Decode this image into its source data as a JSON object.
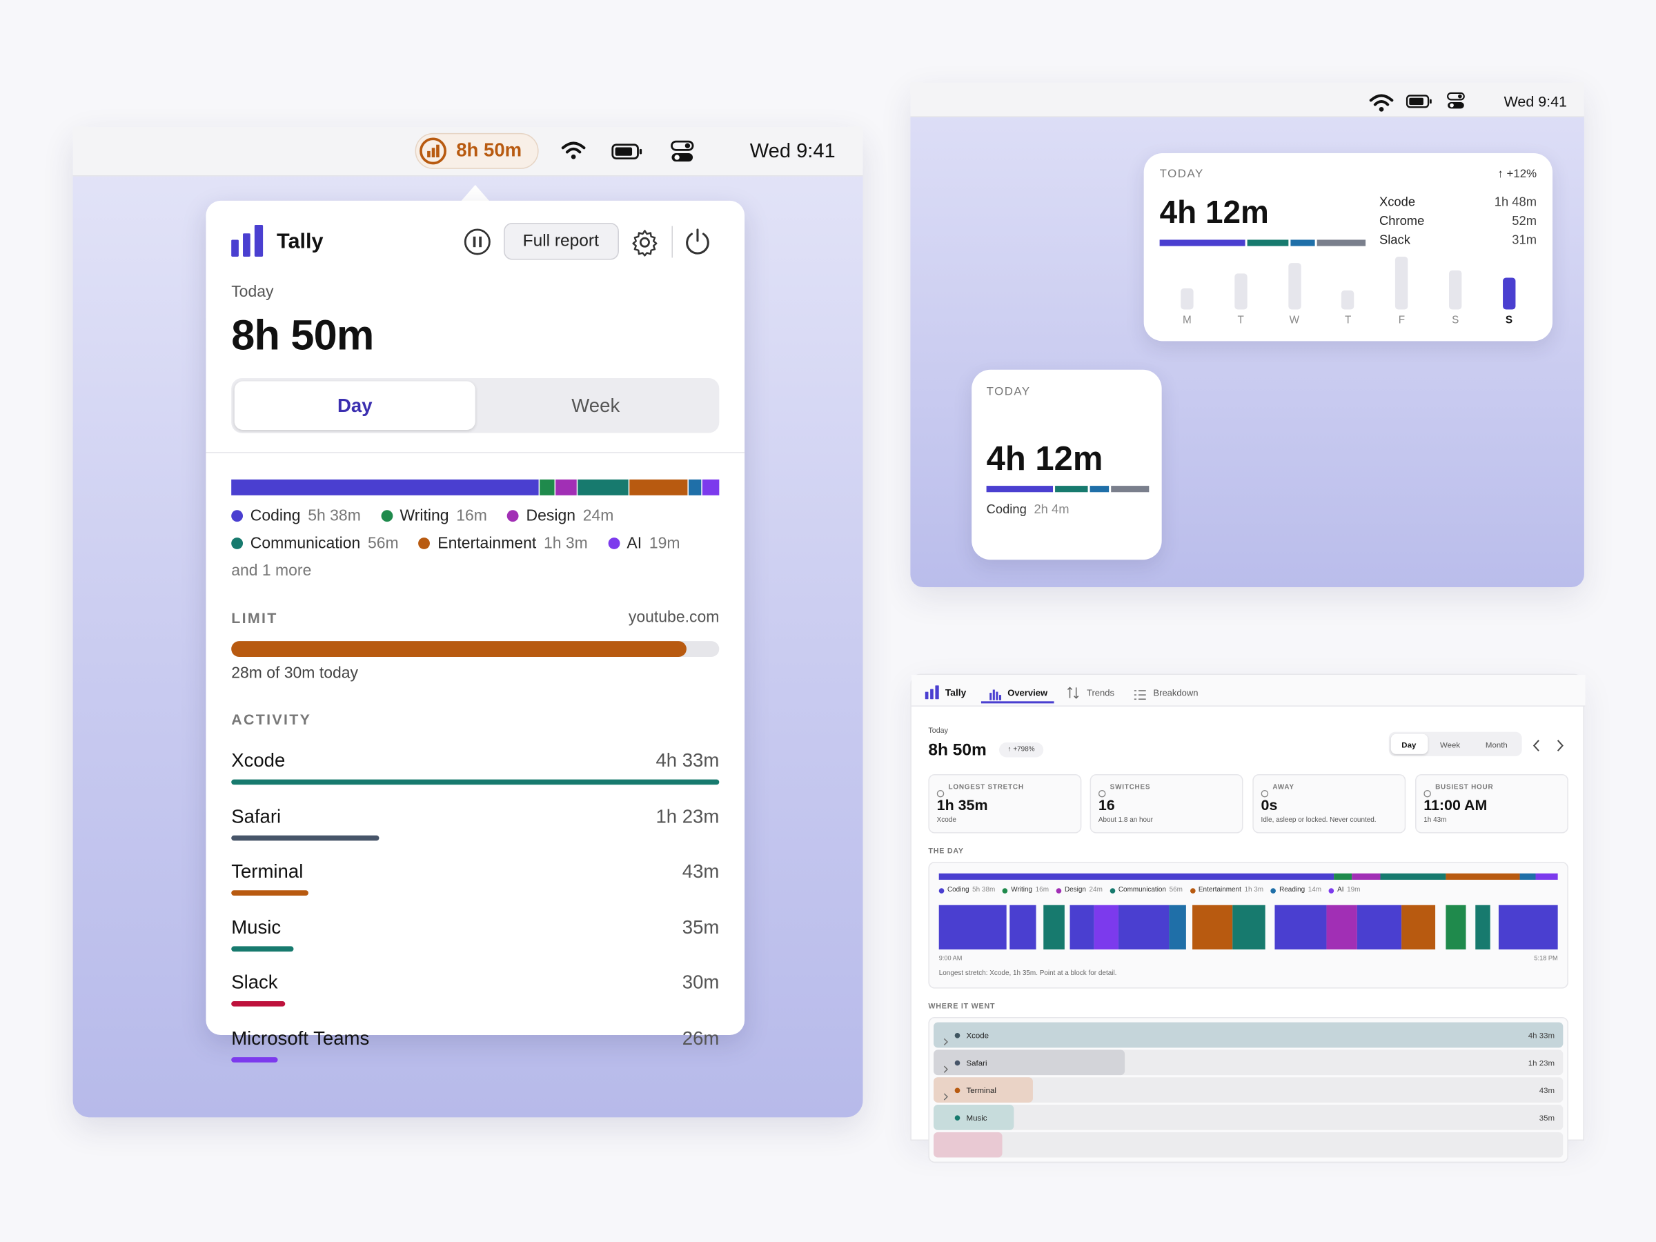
{
  "menu_popup": {
    "menubar": {
      "timer": "8h 50m",
      "clock": "Wed 9:41"
    },
    "app_name": "Tally",
    "full_report": "Full report",
    "today_label": "Today",
    "total": "8h 50m",
    "tabs": [
      "Day",
      "Week"
    ],
    "legend": [
      {
        "name": "Coding",
        "duration": "5h 38m",
        "color": "#4a3fd0"
      },
      {
        "name": "Writing",
        "duration": "16m",
        "color": "#1f8a4c"
      },
      {
        "name": "Design",
        "duration": "24m",
        "color": "#a12fb5"
      },
      {
        "name": "Communication",
        "duration": "56m",
        "color": "#177a6e"
      },
      {
        "name": "Entertainment",
        "duration": "1h 3m",
        "color": "#b85a10"
      },
      {
        "name": "AI",
        "duration": "19m",
        "color": "#7c3aed"
      }
    ],
    "more": "and 1 more",
    "limit": {
      "label": "LIMIT",
      "site": "youtube.com",
      "usage": "28m of 30m today",
      "color": "#b85a10"
    },
    "activity": {
      "label": "ACTIVITY",
      "apps": [
        {
          "name": "Xcode",
          "duration": "4h 33m",
          "color": "#177a6e"
        },
        {
          "name": "Safari",
          "duration": "1h 23m",
          "color": "#475569"
        },
        {
          "name": "Terminal",
          "duration": "43m",
          "color": "#b85a10"
        },
        {
          "name": "Music",
          "duration": "35m",
          "color": "#177a6e"
        },
        {
          "name": "Slack",
          "duration": "30m",
          "color": "#be123c"
        },
        {
          "name": "Microsoft Teams",
          "duration": "26m",
          "color": "#7c3aed"
        }
      ]
    }
  },
  "widgets": {
    "clock": "Wed 9:41",
    "large": {
      "label": "TODAY",
      "change": "↑ +12%",
      "total": "4h 12m",
      "apps": [
        {
          "name": "Xcode",
          "duration": "1h 48m",
          "color": "#4a3fd0"
        },
        {
          "name": "Chrome",
          "duration": "52m",
          "color": "#177a6e"
        },
        {
          "name": "Slack",
          "duration": "31m",
          "color": "#1f6fa8"
        }
      ],
      "rest_color": "#7a7f8c",
      "days": [
        "M",
        "T",
        "W",
        "T",
        "F",
        "S",
        "S"
      ],
      "day_values": [
        2.8,
        4.8,
        6.2,
        2.5,
        7.1,
        5.2,
        4.2
      ],
      "highlight": 6,
      "bar_color": "#e6e6ec",
      "highlight_color": "#4a3fd0"
    },
    "small": {
      "label": "TODAY",
      "total": "4h 12m",
      "caption_name": "Coding",
      "caption_value": "2h 4m"
    }
  },
  "dashboard": {
    "app_name": "Tally",
    "tabs": [
      "Overview",
      "Trends",
      "Breakdown"
    ],
    "today_label": "Today",
    "total": "8h 50m",
    "change": "↑ +798%",
    "ranges": [
      "Day",
      "Week",
      "Month"
    ],
    "stats": [
      {
        "label": "LONGEST STRETCH",
        "value": "1h 35m",
        "note": "Xcode"
      },
      {
        "label": "SWITCHES",
        "value": "16",
        "note": "About 1.8 an hour"
      },
      {
        "label": "AWAY",
        "value": "0s",
        "note": "Idle, asleep or locked. Never counted."
      },
      {
        "label": "BUSIEST HOUR",
        "value": "11:00 AM",
        "note": "1h 43m"
      }
    ],
    "day": {
      "label": "THE DAY",
      "categories": [
        {
          "name": "Coding",
          "duration": "5h 38m",
          "color": "#4a3fd0"
        },
        {
          "name": "Writing",
          "duration": "16m",
          "color": "#1f8a4c"
        },
        {
          "name": "Design",
          "duration": "24m",
          "color": "#a12fb5"
        },
        {
          "name": "Communication",
          "duration": "56m",
          "color": "#177a6e"
        },
        {
          "name": "Entertainment",
          "duration": "1h 3m",
          "color": "#b85a10"
        },
        {
          "name": "Reading",
          "duration": "14m",
          "color": "#1f6fa8"
        },
        {
          "name": "AI",
          "duration": "19m",
          "color": "#7c3aed"
        }
      ],
      "start": "9:00 AM",
      "end": "5:18 PM",
      "note": "Longest stretch: Xcode, 1h 35m. Point at a block for detail."
    },
    "where": {
      "label": "WHERE IT WENT",
      "apps": [
        {
          "name": "Xcode",
          "duration": "4h 33m",
          "color": "#3f5560",
          "fill": "#c5d5da",
          "expandable": true
        },
        {
          "name": "Safari",
          "duration": "1h 23m",
          "color": "#475569",
          "fill": "#d3d4d9",
          "expandable": true
        },
        {
          "name": "Terminal",
          "duration": "43m",
          "color": "#b85a10",
          "fill": "#ead3c6",
          "expandable": true
        },
        {
          "name": "Music",
          "duration": "35m",
          "color": "#177a6e",
          "fill": "#c7dcdc",
          "expandable": false
        }
      ]
    }
  }
}
